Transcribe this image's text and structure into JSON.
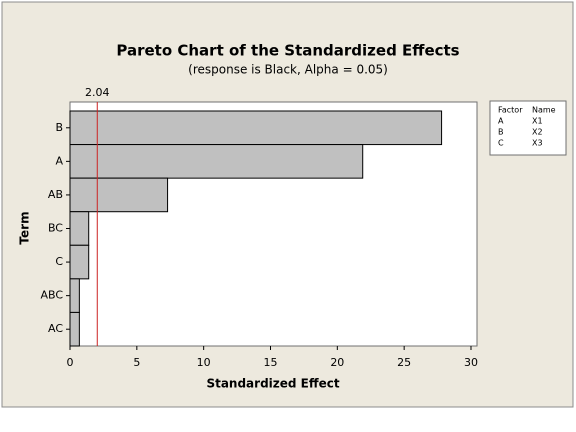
{
  "chart_data": {
    "type": "bar",
    "orientation": "horizontal",
    "title": "Pareto Chart of the Standardized Effects",
    "subtitle": "(response is Black, Alpha = 0.05)",
    "xlabel": "Standardized Effect",
    "ylabel": "Term",
    "categories": [
      "B",
      "A",
      "AB",
      "BC",
      "C",
      "ABC",
      "AC"
    ],
    "values": [
      27.8,
      21.9,
      7.3,
      1.4,
      1.4,
      0.7,
      0.7
    ],
    "color": "#c0c0c0",
    "xlim": [
      0,
      30.45
    ],
    "xticks": [
      0,
      5,
      10,
      15,
      20,
      25,
      30
    ],
    "reference_line": 2.04,
    "reference_color": "#cc2222",
    "legend_table": {
      "headers": [
        "Factor",
        "Name"
      ],
      "rows": [
        [
          "A",
          "X1"
        ],
        [
          "B",
          "X2"
        ],
        [
          "C",
          "X3"
        ]
      ]
    }
  }
}
